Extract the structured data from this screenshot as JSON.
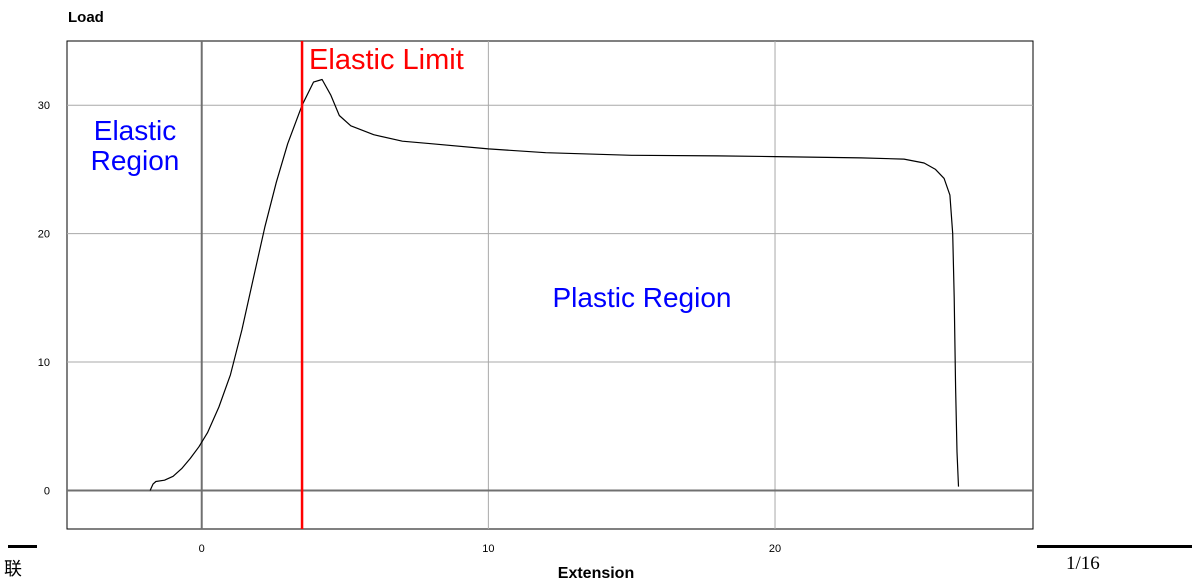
{
  "chart_data": {
    "type": "line",
    "ylabel": "Load",
    "xlabel": "Extension",
    "xlim": [
      -4.7,
      29
    ],
    "ylim": [
      -3,
      35
    ],
    "x_ticks": [
      0,
      10,
      20
    ],
    "y_ticks": [
      0,
      10,
      20,
      30
    ],
    "grid": true,
    "series": [
      {
        "x": [
          -1.8,
          -1.7,
          -1.6,
          -1.3,
          -1.0,
          -0.7,
          -0.4,
          -0.1,
          0.2,
          0.6,
          1.0,
          1.4,
          1.8,
          2.2,
          2.6,
          3.0,
          3.5,
          3.9,
          4.2,
          4.5,
          4.8,
          5.2,
          6.0,
          7.0,
          8.0,
          10.0,
          12.0,
          15.0,
          18.0,
          20.0,
          23.0,
          24.5,
          25.2,
          25.6,
          25.9,
          26.1,
          26.2,
          26.25,
          26.3,
          26.35,
          26.4
        ],
        "y": [
          0.0,
          0.5,
          0.7,
          0.8,
          1.1,
          1.7,
          2.5,
          3.4,
          4.5,
          6.5,
          9.0,
          12.5,
          16.5,
          20.5,
          24.0,
          27.0,
          30.0,
          31.8,
          32.0,
          30.8,
          29.2,
          28.4,
          27.7,
          27.2,
          27.0,
          26.6,
          26.3,
          26.1,
          26.05,
          26.0,
          25.9,
          25.8,
          25.5,
          25.0,
          24.3,
          23.0,
          20.0,
          15.0,
          8.0,
          3.0,
          0.3
        ],
        "color": "#000000"
      }
    ],
    "markers": [
      {
        "x": 3.5,
        "label": "Elastic Limit",
        "color": "#ff0000"
      }
    ],
    "annotations": [
      {
        "lines": [
          "Elastic",
          "Region"
        ],
        "color": "#0000ff"
      },
      {
        "lines": [
          "Plastic Region"
        ],
        "color": "#0000ff"
      }
    ]
  },
  "footer": {
    "left_text": "联",
    "right_text": "1/16"
  }
}
